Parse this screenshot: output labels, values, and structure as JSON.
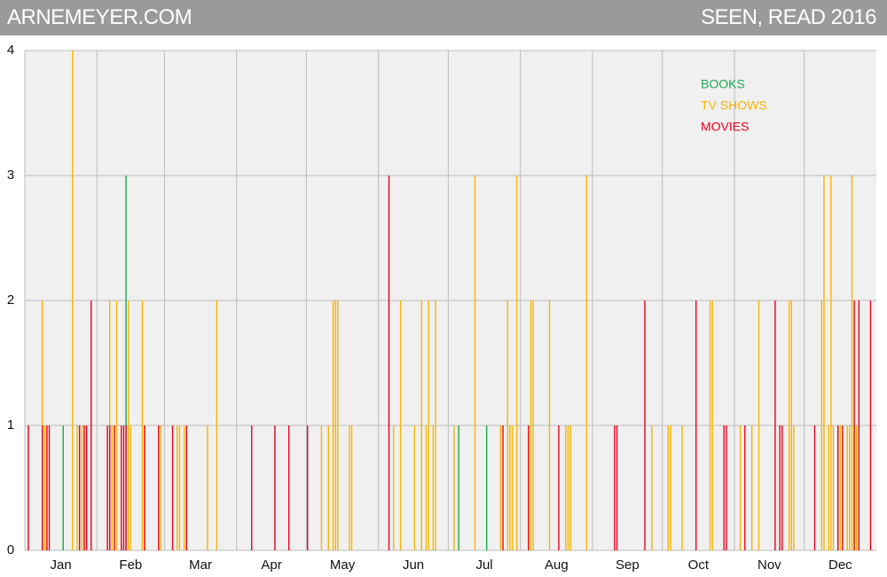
{
  "header": {
    "site": "ARNEMEYER.COM",
    "title": "SEEN, READ 2016"
  },
  "chart_data": {
    "type": "spike",
    "xlim": [
      0,
      366
    ],
    "ylim": [
      0,
      4
    ],
    "yticks": [
      0,
      1,
      2,
      3,
      4
    ],
    "grid": true,
    "legend": "upper right",
    "xticks": [
      {
        "value": 0,
        "label": "Jan"
      },
      {
        "value": 31,
        "label": "Feb"
      },
      {
        "value": 60,
        "label": "Mar"
      },
      {
        "value": 91,
        "label": "Apr"
      },
      {
        "value": 121,
        "label": "May"
      },
      {
        "value": 152,
        "label": "Jun"
      },
      {
        "value": 182,
        "label": "Jul"
      },
      {
        "value": 213,
        "label": "Aug"
      },
      {
        "value": 244,
        "label": "Sep"
      },
      {
        "value": 274,
        "label": "Oct"
      },
      {
        "value": 305,
        "label": "Nov"
      },
      {
        "value": 335,
        "label": "Dec"
      }
    ],
    "series": [
      {
        "name": "BOOKS",
        "color": "#1aa850",
        "x": [
          17,
          44,
          187,
          199
        ],
        "values": [
          1,
          3,
          1,
          1
        ]
      },
      {
        "name": "TV SHOWS",
        "color": "#f7b500",
        "x": [
          8,
          9,
          10,
          21,
          23,
          25,
          26,
          27,
          37,
          38,
          40,
          42,
          45,
          46,
          51,
          52,
          58,
          59,
          66,
          67,
          69,
          79,
          83,
          128,
          131,
          133,
          134,
          135,
          140,
          141,
          159,
          162,
          168,
          171,
          173,
          174,
          176,
          177,
          185,
          194,
          205,
          208,
          209,
          210,
          212,
          217,
          218,
          219,
          226,
          233,
          234,
          235,
          242,
          270,
          277,
          278,
          283,
          295,
          296,
          308,
          313,
          316,
          329,
          330,
          331,
          343,
          344,
          346,
          347,
          348,
          350,
          351,
          354,
          355,
          356,
          357,
          358
        ],
        "values": [
          2,
          1,
          1,
          4,
          1,
          1,
          1,
          1,
          2,
          1,
          2,
          1,
          2,
          1,
          2,
          1,
          1,
          1,
          1,
          1,
          1,
          1,
          2,
          1,
          1,
          2,
          2,
          2,
          1,
          1,
          1,
          2,
          1,
          2,
          1,
          2,
          1,
          2,
          1,
          3,
          1,
          2,
          1,
          1,
          3,
          1,
          2,
          2,
          2,
          1,
          1,
          1,
          3,
          1,
          1,
          1,
          1,
          2,
          2,
          1,
          1,
          2,
          2,
          2,
          1,
          2,
          3,
          1,
          3,
          1,
          1,
          1,
          1,
          1,
          3,
          1,
          1
        ]
      },
      {
        "name": "MOVIES",
        "color": "#e8001c",
        "x": [
          2,
          8,
          10,
          11,
          24,
          26,
          27,
          29,
          36,
          37,
          39,
          42,
          43,
          44,
          52,
          58,
          64,
          70,
          98,
          108,
          114,
          122,
          157,
          206,
          217,
          230,
          254,
          255,
          267,
          289,
          301,
          302,
          310,
          323,
          325,
          326,
          340,
          350,
          352,
          357,
          359,
          364
        ],
        "values": [
          1,
          1,
          1,
          1,
          1,
          1,
          1,
          2,
          1,
          1,
          1,
          1,
          1,
          1,
          1,
          1,
          1,
          1,
          1,
          1,
          1,
          1,
          3,
          1,
          1,
          1,
          1,
          1,
          2,
          2,
          1,
          1,
          1,
          2,
          1,
          1,
          1,
          1,
          1,
          2,
          2,
          2
        ]
      }
    ]
  }
}
